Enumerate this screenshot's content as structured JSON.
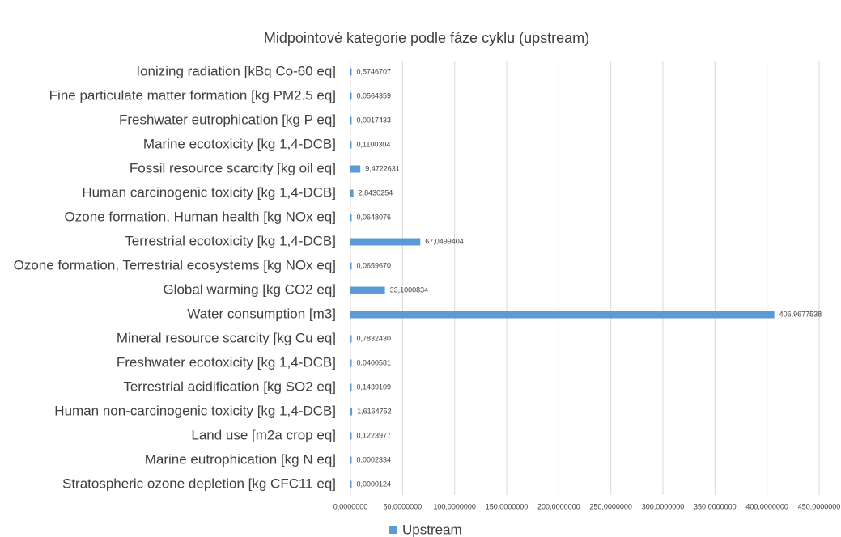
{
  "chart_data": {
    "type": "bar",
    "orientation": "horizontal",
    "title": "Midpointové kategorie podle fáze cyklu (upstream)",
    "categories": [
      "Ionizing radiation [kBq Co-60 eq]",
      "Fine particulate matter formation [kg PM2.5 eq]",
      "Freshwater eutrophication [kg P eq]",
      "Marine ecotoxicity [kg 1,4-DCB]",
      "Fossil resource scarcity [kg oil eq]",
      "Human carcinogenic toxicity [kg 1,4-DCB]",
      "Ozone formation, Human health [kg NOx eq]",
      "Terrestrial ecotoxicity [kg 1,4-DCB]",
      "Ozone formation, Terrestrial ecosystems [kg NOx eq]",
      "Global warming [kg CO2 eq]",
      "Water consumption [m3]",
      "Mineral resource scarcity [kg Cu eq]",
      "Freshwater ecotoxicity [kg 1,4-DCB]",
      "Terrestrial acidification [kg SO2 eq]",
      "Human non-carcinogenic toxicity [kg 1,4-DCB]",
      "Land use [m2a crop eq]",
      "Marine eutrophication [kg N eq]",
      "Stratospheric ozone depletion [kg CFC11 eq]"
    ],
    "series": [
      {
        "name": "Upstream",
        "color": "#5b9bd5",
        "values": [
          0.5746707,
          0.0564359,
          0.0017433,
          0.1100304,
          9.4722631,
          2.8430254,
          0.0648076,
          67.0499404,
          0.065967,
          33.1000834,
          406.9677538,
          0.783243,
          0.0400581,
          0.1439109,
          1.6164752,
          0.1223977,
          0.0002334,
          1.24e-05
        ],
        "value_labels": [
          "0,5746707",
          "0,0564359",
          "0,0017433",
          "0,1100304",
          "9,4722631",
          "2,8430254",
          "0,0648076",
          "67,0499404",
          "0,0659670",
          "33,1000834",
          "406,9677538",
          "0,7832430",
          "0,0400581",
          "0,1439109",
          "1,6164752",
          "0,1223977",
          "0,0002334",
          "0,0000124"
        ]
      }
    ],
    "xlim": [
      0,
      450
    ],
    "xticks": [
      {
        "value": 0,
        "label": "0,0000000"
      },
      {
        "value": 50,
        "label": "50,0000000"
      },
      {
        "value": 100,
        "label": "100,0000000"
      },
      {
        "value": 150,
        "label": "150,0000000"
      },
      {
        "value": 200,
        "label": "200,0000000"
      },
      {
        "value": 250,
        "label": "250,0000000"
      },
      {
        "value": 300,
        "label": "300,0000000"
      },
      {
        "value": 350,
        "label": "350,0000000"
      },
      {
        "value": 400,
        "label": "400,0000000"
      },
      {
        "value": 450,
        "label": "450,0000000"
      }
    ],
    "grid": true,
    "legend": "bottom"
  }
}
